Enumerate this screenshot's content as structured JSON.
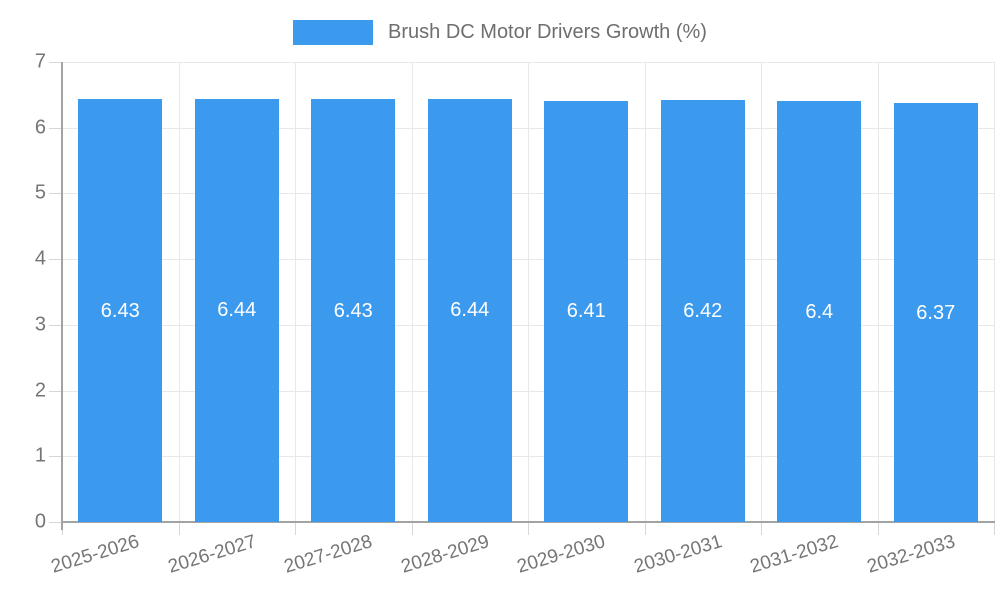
{
  "legend": {
    "entries": [
      "Brush DC Motor Drivers Growth (%)"
    ]
  },
  "chart_data": {
    "type": "bar",
    "title": "Brush DC Motor Drivers Growth (%)",
    "legend_entries": [
      "Brush DC Motor Drivers Growth (%)"
    ],
    "legend_position": "top-center",
    "categories": [
      "2025-2026",
      "2026-2027",
      "2027-2028",
      "2028-2029",
      "2029-2030",
      "2030-2031",
      "2031-2032",
      "2032-2033"
    ],
    "series": [
      {
        "name": "Brush DC Motor Drivers Growth (%)",
        "values": [
          6.43,
          6.44,
          6.43,
          6.44,
          6.41,
          6.42,
          6.4,
          6.37
        ],
        "value_labels": [
          "6.43",
          "6.44",
          "6.43",
          "6.44",
          "6.41",
          "6.42",
          "6.4",
          "6.37"
        ]
      }
    ],
    "xlabel": "",
    "ylabel": "",
    "ylim": [
      0,
      7
    ],
    "yticks": [
      0,
      1,
      2,
      3,
      4,
      5,
      6,
      7
    ],
    "grid": true,
    "x_label_rotation_deg": -17,
    "colors": {
      "bar": "#3b9aee",
      "grid": "#e8e8e8",
      "axis": "#a3a3a3",
      "tick": "#d6d6d6",
      "axis_text": "#757575",
      "legend_text": "#6e6e6e",
      "value_text": "#ffffff"
    }
  }
}
